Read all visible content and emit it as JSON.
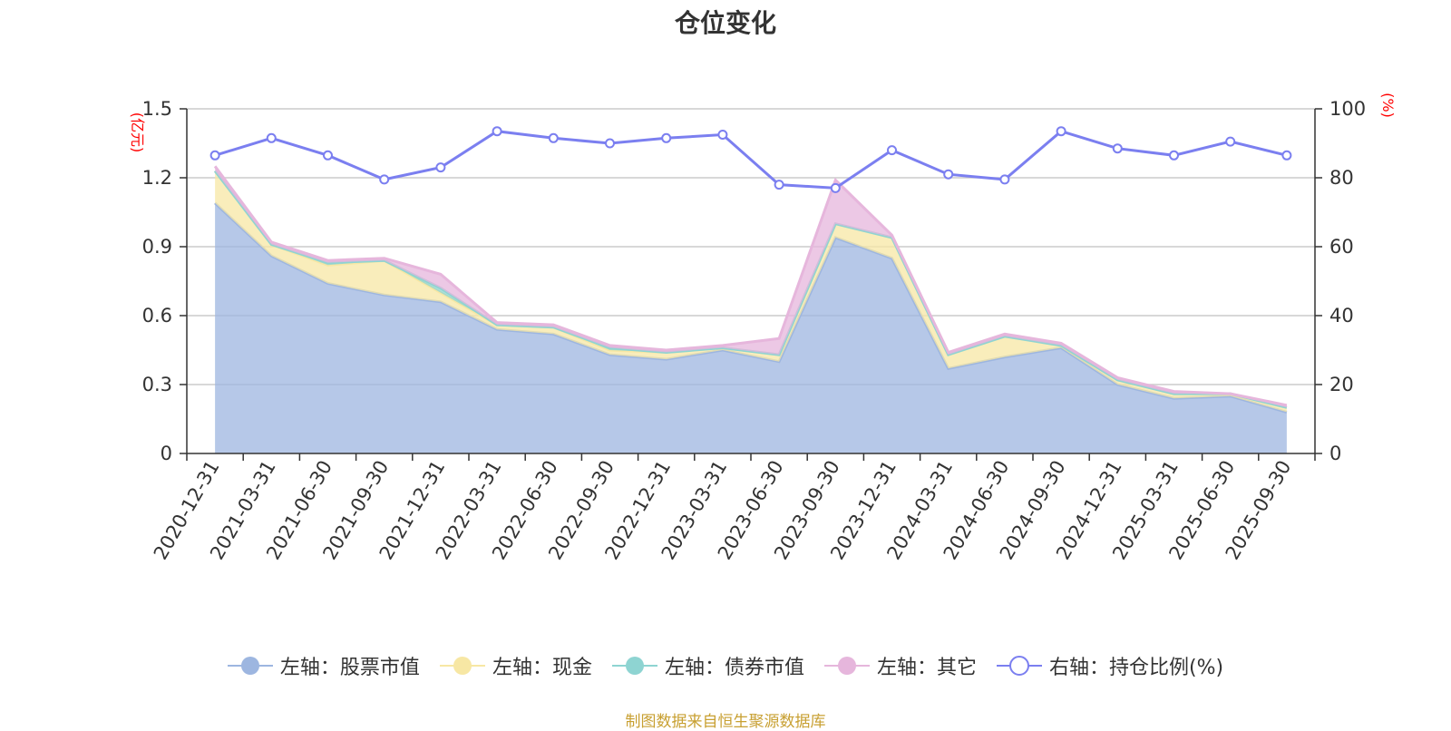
{
  "chart_data": {
    "type": "area",
    "title": "仓位变化",
    "categories": [
      "2020-12-31",
      "2021-03-31",
      "2021-06-30",
      "2021-09-30",
      "2021-12-31",
      "2022-03-31",
      "2022-06-30",
      "2022-09-30",
      "2022-12-31",
      "2023-03-31",
      "2023-06-30",
      "2023-09-30",
      "2023-12-31",
      "2024-03-31",
      "2024-06-30",
      "2024-09-30",
      "2024-12-31",
      "2025-03-31",
      "2025-06-30",
      "2025-09-30"
    ],
    "left_axis": {
      "unit": "(亿元)",
      "ylim": [
        0,
        1.5
      ],
      "ticks": [
        "0",
        "0.3",
        "0.6",
        "0.9",
        "1.2",
        "1.5"
      ]
    },
    "right_axis": {
      "unit": "(%)",
      "ylim": [
        0,
        100
      ],
      "ticks": [
        "0",
        "20",
        "40",
        "60",
        "80",
        "100"
      ]
    },
    "series": [
      {
        "name": "左轴：股票市值",
        "axis": "left",
        "stack": true,
        "color": "#9db6e0",
        "values": [
          1.09,
          0.86,
          0.74,
          0.69,
          0.66,
          0.54,
          0.52,
          0.43,
          0.41,
          0.45,
          0.4,
          0.94,
          0.85,
          0.37,
          0.42,
          0.46,
          0.3,
          0.24,
          0.25,
          0.18
        ]
      },
      {
        "name": "左轴：现金",
        "axis": "left",
        "stack": true,
        "color": "#f7e7a4",
        "values": [
          0.14,
          0.05,
          0.08,
          0.15,
          0.04,
          0.02,
          0.03,
          0.02,
          0.03,
          0.01,
          0.03,
          0.06,
          0.09,
          0.06,
          0.09,
          0.01,
          0.02,
          0.02,
          0.01,
          0.02
        ]
      },
      {
        "name": "左轴：债券市值",
        "axis": "left",
        "stack": true,
        "color": "#8ed4d2",
        "values": [
          0.0,
          0.0,
          0.01,
          0.0,
          0.02,
          0.0,
          0.0,
          0.01,
          0.0,
          0.0,
          0.0,
          0.0,
          0.0,
          0.0,
          0.0,
          0.0,
          0.0,
          0.0,
          0.0,
          0.0
        ]
      },
      {
        "name": "左轴：其它",
        "axis": "left",
        "stack": true,
        "color": "#e6b6dc",
        "values": [
          0.02,
          0.01,
          0.01,
          0.01,
          0.06,
          0.01,
          0.01,
          0.01,
          0.01,
          0.01,
          0.07,
          0.19,
          0.01,
          0.01,
          0.01,
          0.01,
          0.01,
          0.01,
          0.0,
          0.01
        ]
      },
      {
        "name": "右轴：持仓比例(%)",
        "axis": "right",
        "stack": false,
        "color": "#7b7ff0",
        "values": [
          86.5,
          91.5,
          86.5,
          79.5,
          83,
          93.5,
          91.5,
          90,
          91.5,
          92.5,
          78,
          77,
          88,
          81,
          79.5,
          93.5,
          88.5,
          86.5,
          90.5,
          86.5
        ]
      }
    ]
  },
  "source_note": "制图数据来自恒生聚源数据库"
}
